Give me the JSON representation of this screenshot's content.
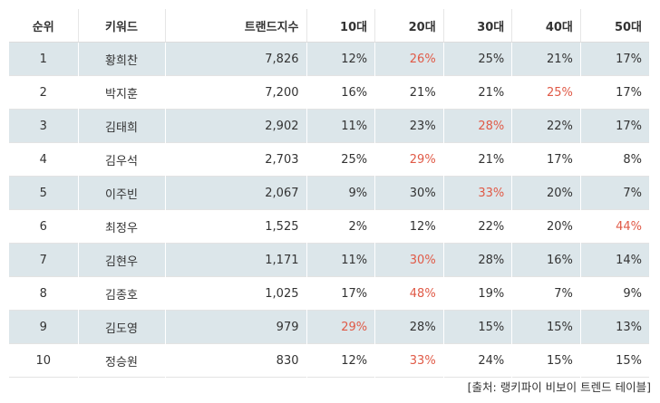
{
  "table": {
    "headers": {
      "rank": "순위",
      "keyword": "키워드",
      "trend_index": "트랜드지수",
      "age10": "10대",
      "age20": "20대",
      "age30": "30대",
      "age40": "40대",
      "age50": "50대"
    },
    "highlight_color": "#e05a47",
    "rows": [
      {
        "rank": "1",
        "keyword": "황희찬",
        "trend_index": "7,826",
        "age10": "12%",
        "age20": "26%",
        "age30": "25%",
        "age40": "21%",
        "age50": "17%",
        "highlight": "age20"
      },
      {
        "rank": "2",
        "keyword": "박지훈",
        "trend_index": "7,200",
        "age10": "16%",
        "age20": "21%",
        "age30": "21%",
        "age40": "25%",
        "age50": "17%",
        "highlight": "age40"
      },
      {
        "rank": "3",
        "keyword": "김태희",
        "trend_index": "2,902",
        "age10": "11%",
        "age20": "23%",
        "age30": "28%",
        "age40": "22%",
        "age50": "17%",
        "highlight": "age30"
      },
      {
        "rank": "4",
        "keyword": "김우석",
        "trend_index": "2,703",
        "age10": "25%",
        "age20": "29%",
        "age30": "21%",
        "age40": "17%",
        "age50": "8%",
        "highlight": "age20"
      },
      {
        "rank": "5",
        "keyword": "이주빈",
        "trend_index": "2,067",
        "age10": "9%",
        "age20": "30%",
        "age30": "33%",
        "age40": "20%",
        "age50": "7%",
        "highlight": "age30"
      },
      {
        "rank": "6",
        "keyword": "최정우",
        "trend_index": "1,525",
        "age10": "2%",
        "age20": "12%",
        "age30": "22%",
        "age40": "20%",
        "age50": "44%",
        "highlight": "age50"
      },
      {
        "rank": "7",
        "keyword": "김현우",
        "trend_index": "1,171",
        "age10": "11%",
        "age20": "30%",
        "age30": "28%",
        "age40": "16%",
        "age50": "14%",
        "highlight": "age20"
      },
      {
        "rank": "8",
        "keyword": "김종호",
        "trend_index": "1,025",
        "age10": "17%",
        "age20": "48%",
        "age30": "19%",
        "age40": "7%",
        "age50": "9%",
        "highlight": "age20"
      },
      {
        "rank": "9",
        "keyword": "김도영",
        "trend_index": "979",
        "age10": "29%",
        "age20": "28%",
        "age30": "15%",
        "age40": "15%",
        "age50": "13%",
        "highlight": "age10"
      },
      {
        "rank": "10",
        "keyword": "정승원",
        "trend_index": "830",
        "age10": "12%",
        "age20": "33%",
        "age30": "24%",
        "age40": "15%",
        "age50": "15%",
        "highlight": "age20"
      }
    ]
  },
  "source": "[출처: 랭키파이 비보이 트렌드 테이블]"
}
